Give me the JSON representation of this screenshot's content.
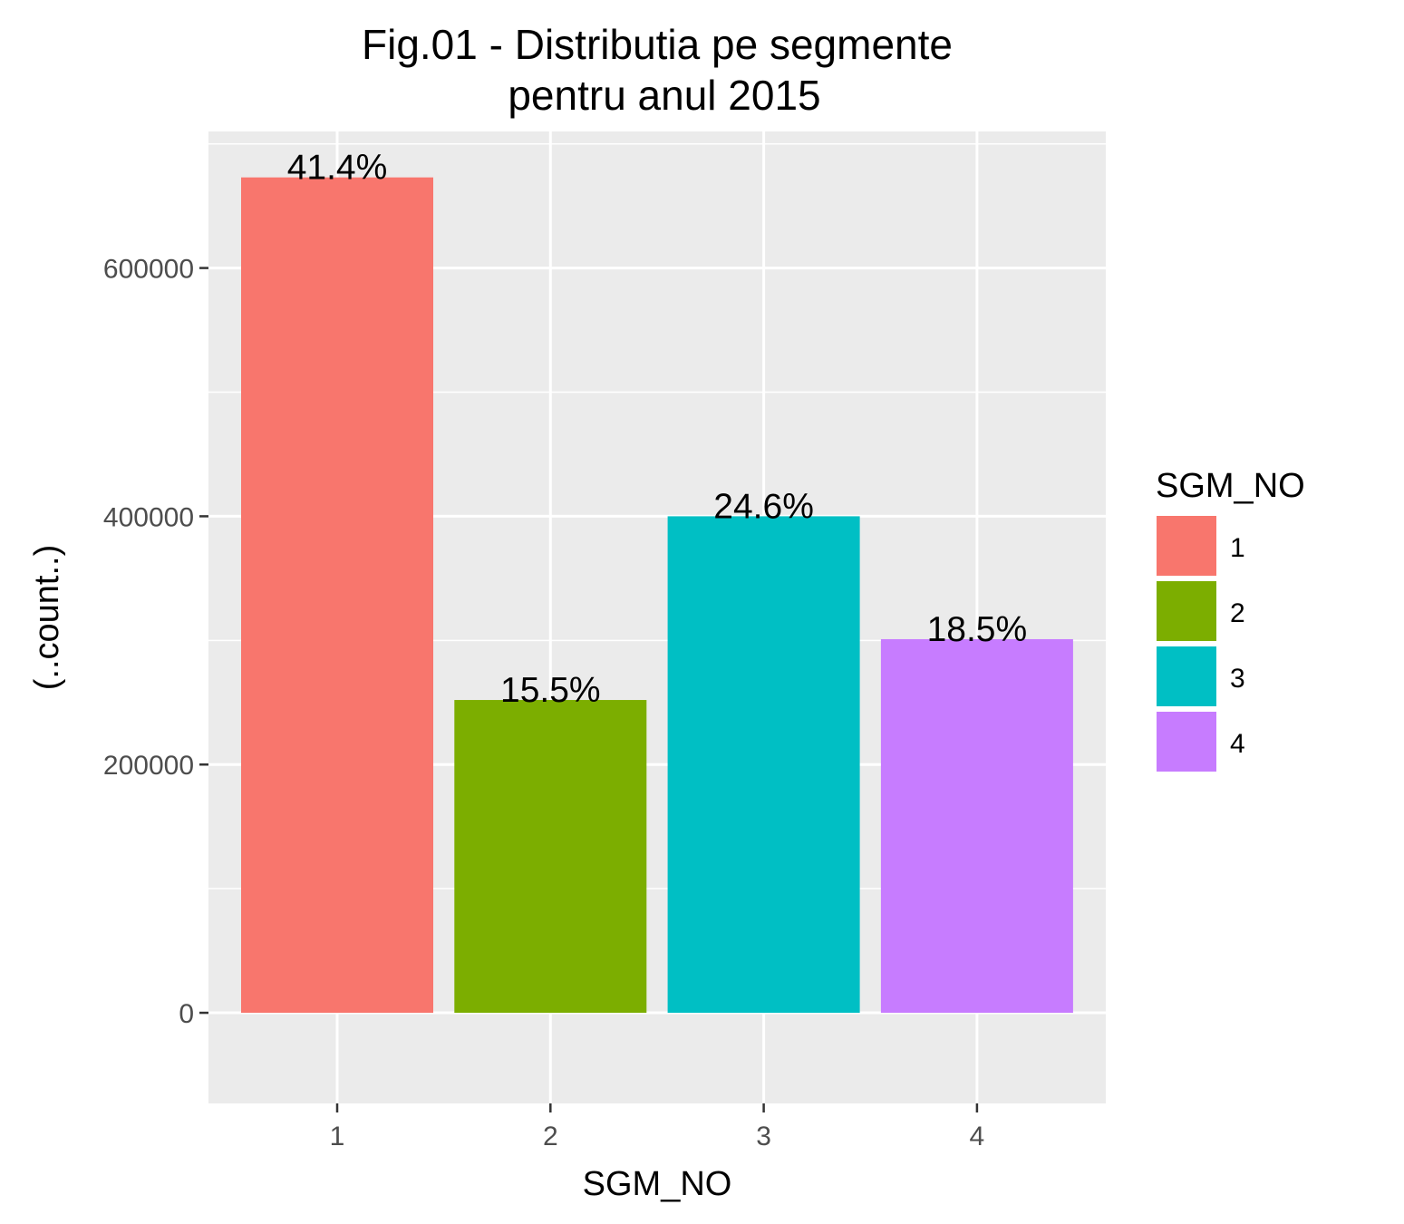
{
  "chart_data": {
    "type": "bar",
    "title_lines": [
      "Fig.01 - Distributia pe segmente",
      "pentru anul 2015"
    ],
    "xlabel": "SGM_NO",
    "ylabel": "(..count..)",
    "categories": [
      "1",
      "2",
      "3",
      "4"
    ],
    "values": [
      673000,
      252000,
      400000,
      301000
    ],
    "labels": [
      "41.4%",
      "15.5%",
      "24.6%",
      "18.5%"
    ],
    "colors": [
      "#F8766D",
      "#7CAE00",
      "#00BFC4",
      "#C77CFF"
    ],
    "ylim": [
      -73000,
      710000
    ],
    "yticks": [
      0,
      200000,
      400000,
      600000
    ],
    "yticks_labels": [
      "0",
      "200000",
      "400000",
      "600000"
    ],
    "grid": true,
    "panel_background": "#EBEBEB",
    "legend": {
      "title": "SGM_NO",
      "position": "right",
      "items": [
        "1",
        "2",
        "3",
        "4"
      ]
    }
  }
}
